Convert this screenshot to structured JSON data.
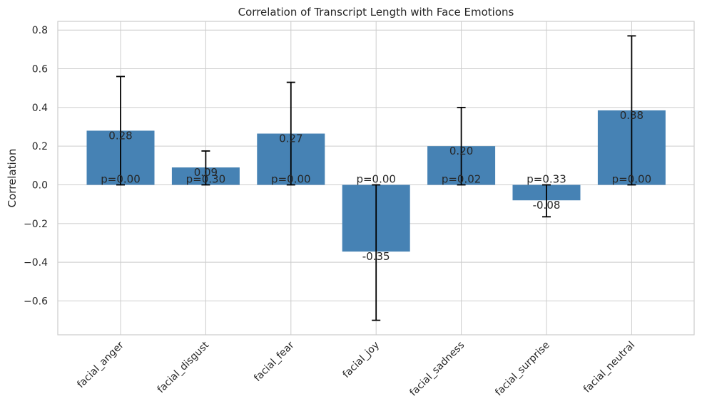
{
  "chart_data": {
    "type": "bar",
    "title": "Correlation of Transcript Length with Face Emotions",
    "xlabel": "",
    "ylabel": "Correlation",
    "categories": [
      "facial_anger",
      "facial_disgust",
      "facial_fear",
      "facial_joy",
      "facial_sadness",
      "facial_surprise",
      "facial_neutral"
    ],
    "values": [
      0.28,
      0.09,
      0.265,
      -0.345,
      0.2,
      -0.08,
      0.385
    ],
    "value_labels": [
      "0.28",
      "0.09",
      "0.27",
      "-0.35",
      "0.20",
      "-0.08",
      "0.38"
    ],
    "p_labels": [
      "p=0.00",
      "p=0.30",
      "p=0.00",
      "p=0.00",
      "p=0.02",
      "p=0.33",
      "p=0.00"
    ],
    "error_bars": [
      {
        "low": 0.0,
        "high": 0.56
      },
      {
        "low": 0.0,
        "high": 0.175
      },
      {
        "low": 0.0,
        "high": 0.53
      },
      {
        "low": -0.7,
        "high": 0.0
      },
      {
        "low": 0.0,
        "high": 0.4
      },
      {
        "low": -0.165,
        "high": 0.0
      },
      {
        "low": 0.0,
        "high": 0.77
      }
    ],
    "ylim": [
      -0.775,
      0.845
    ],
    "yticks": [
      -0.6,
      -0.4,
      -0.2,
      0.0,
      0.2,
      0.4,
      0.6,
      0.8
    ],
    "ytick_labels": [
      "−0.6",
      "−0.4",
      "−0.2",
      "0.0",
      "0.2",
      "0.4",
      "0.6",
      "0.8"
    ],
    "grid": true,
    "colors": {
      "bar": "#4682b4",
      "grid": "#cccccc",
      "errorbar": "#000000",
      "axes_edge": "#cccccc"
    }
  }
}
